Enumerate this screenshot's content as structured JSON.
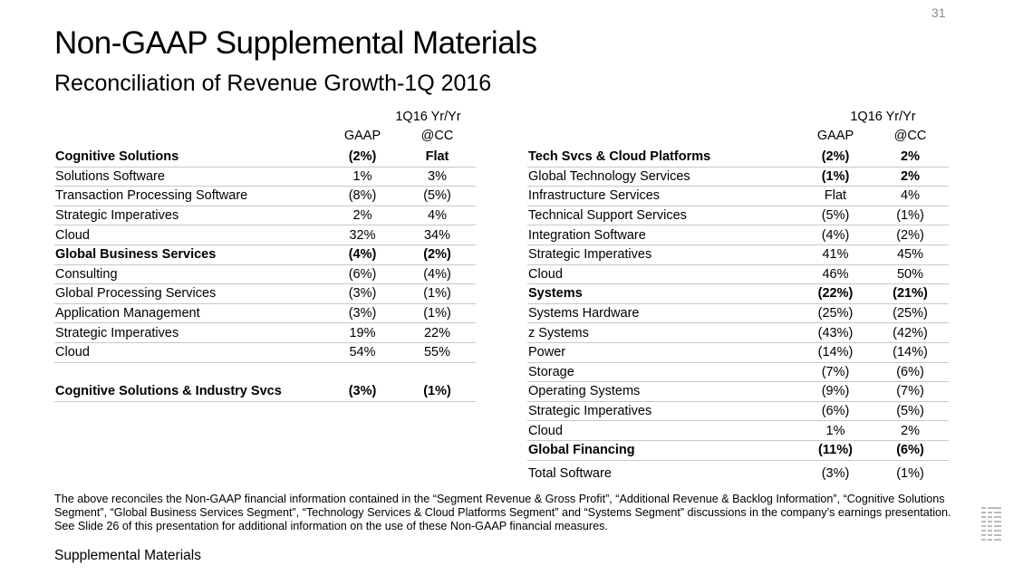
{
  "title": "Non-GAAP Supplemental Materials",
  "subtitle": "Reconciliation of Revenue Growth-1Q 2016",
  "page_number": "31",
  "header": {
    "period": "1Q16 Yr/Yr",
    "gaap": "GAAP",
    "cc": "@CC"
  },
  "left_table": [
    {
      "label": "Cognitive Solutions",
      "gaap": "(2%)",
      "cc": "Flat",
      "bold": true
    },
    {
      "label": "Solutions Software",
      "gaap": "1%",
      "cc": "3%"
    },
    {
      "label": "Transaction Processing Software",
      "gaap": "(8%)",
      "cc": "(5%)"
    },
    {
      "label": "Strategic Imperatives",
      "gaap": "2%",
      "cc": "4%"
    },
    {
      "label": "Cloud",
      "gaap": "32%",
      "cc": "34%"
    },
    {
      "label": "Global Business Services",
      "gaap": "(4%)",
      "cc": "(2%)",
      "bold": true
    },
    {
      "label": "Consulting",
      "gaap": "(6%)",
      "cc": "(4%)"
    },
    {
      "label": "Global Processing Services",
      "gaap": "(3%)",
      "cc": "(1%)"
    },
    {
      "label": "Application Management",
      "gaap": "(3%)",
      "cc": "(1%)"
    },
    {
      "label": "Strategic Imperatives",
      "gaap": "19%",
      "cc": "22%"
    },
    {
      "label": "Cloud",
      "gaap": "54%",
      "cc": "55%"
    },
    {
      "label": "",
      "gaap": "",
      "cc": "",
      "blank": true
    },
    {
      "label": "Cognitive Solutions & Industry Svcs",
      "gaap": "(3%)",
      "cc": "(1%)",
      "bold": true
    }
  ],
  "right_table": [
    {
      "label": "Tech Svcs & Cloud Platforms",
      "gaap": "(2%)",
      "cc": "2%",
      "bold": true
    },
    {
      "label": "Global Technology Services",
      "gaap": "(1%)",
      "cc": "2%",
      "boldvals": true
    },
    {
      "label": "Infrastructure Services",
      "gaap": "Flat",
      "cc": "4%"
    },
    {
      "label": "Technical Support Services",
      "gaap": "(5%)",
      "cc": "(1%)"
    },
    {
      "label": "Integration Software",
      "gaap": "(4%)",
      "cc": "(2%)"
    },
    {
      "label": "Strategic Imperatives",
      "gaap": "41%",
      "cc": "45%"
    },
    {
      "label": "Cloud",
      "gaap": "46%",
      "cc": "50%"
    },
    {
      "label": "Systems",
      "gaap": "(22%)",
      "cc": "(21%)",
      "bold": true
    },
    {
      "label": "Systems Hardware",
      "gaap": "(25%)",
      "cc": "(25%)"
    },
    {
      "label": "z Systems",
      "gaap": "(43%)",
      "cc": "(42%)"
    },
    {
      "label": "Power",
      "gaap": "(14%)",
      "cc": "(14%)"
    },
    {
      "label": "Storage",
      "gaap": "(7%)",
      "cc": "(6%)"
    },
    {
      "label": "Operating Systems",
      "gaap": "(9%)",
      "cc": "(7%)"
    },
    {
      "label": "Strategic Imperatives",
      "gaap": "(6%)",
      "cc": "(5%)"
    },
    {
      "label": "Cloud",
      "gaap": "1%",
      "cc": "2%"
    },
    {
      "label": "Global Financing",
      "gaap": "(11%)",
      "cc": "(6%)",
      "bold": true
    },
    {
      "label": "Total Software",
      "gaap": "(3%)",
      "cc": "(1%)",
      "noline": true
    }
  ],
  "footnote": "The above reconciles the Non-GAAP financial information contained in the “Segment Revenue & Gross Profit”, “Additional Revenue & Backlog Information”, “Cognitive Solutions Segment”, “Global Business Services Segment”, “Technology Services & Cloud Platforms Segment” and “Systems Segment” discussions in the company’s earnings presentation. See Slide 26 of this presentation for additional information on the use of these Non-GAAP financial measures.",
  "footer": "Supplemental Materials",
  "logo_text": "IBM"
}
